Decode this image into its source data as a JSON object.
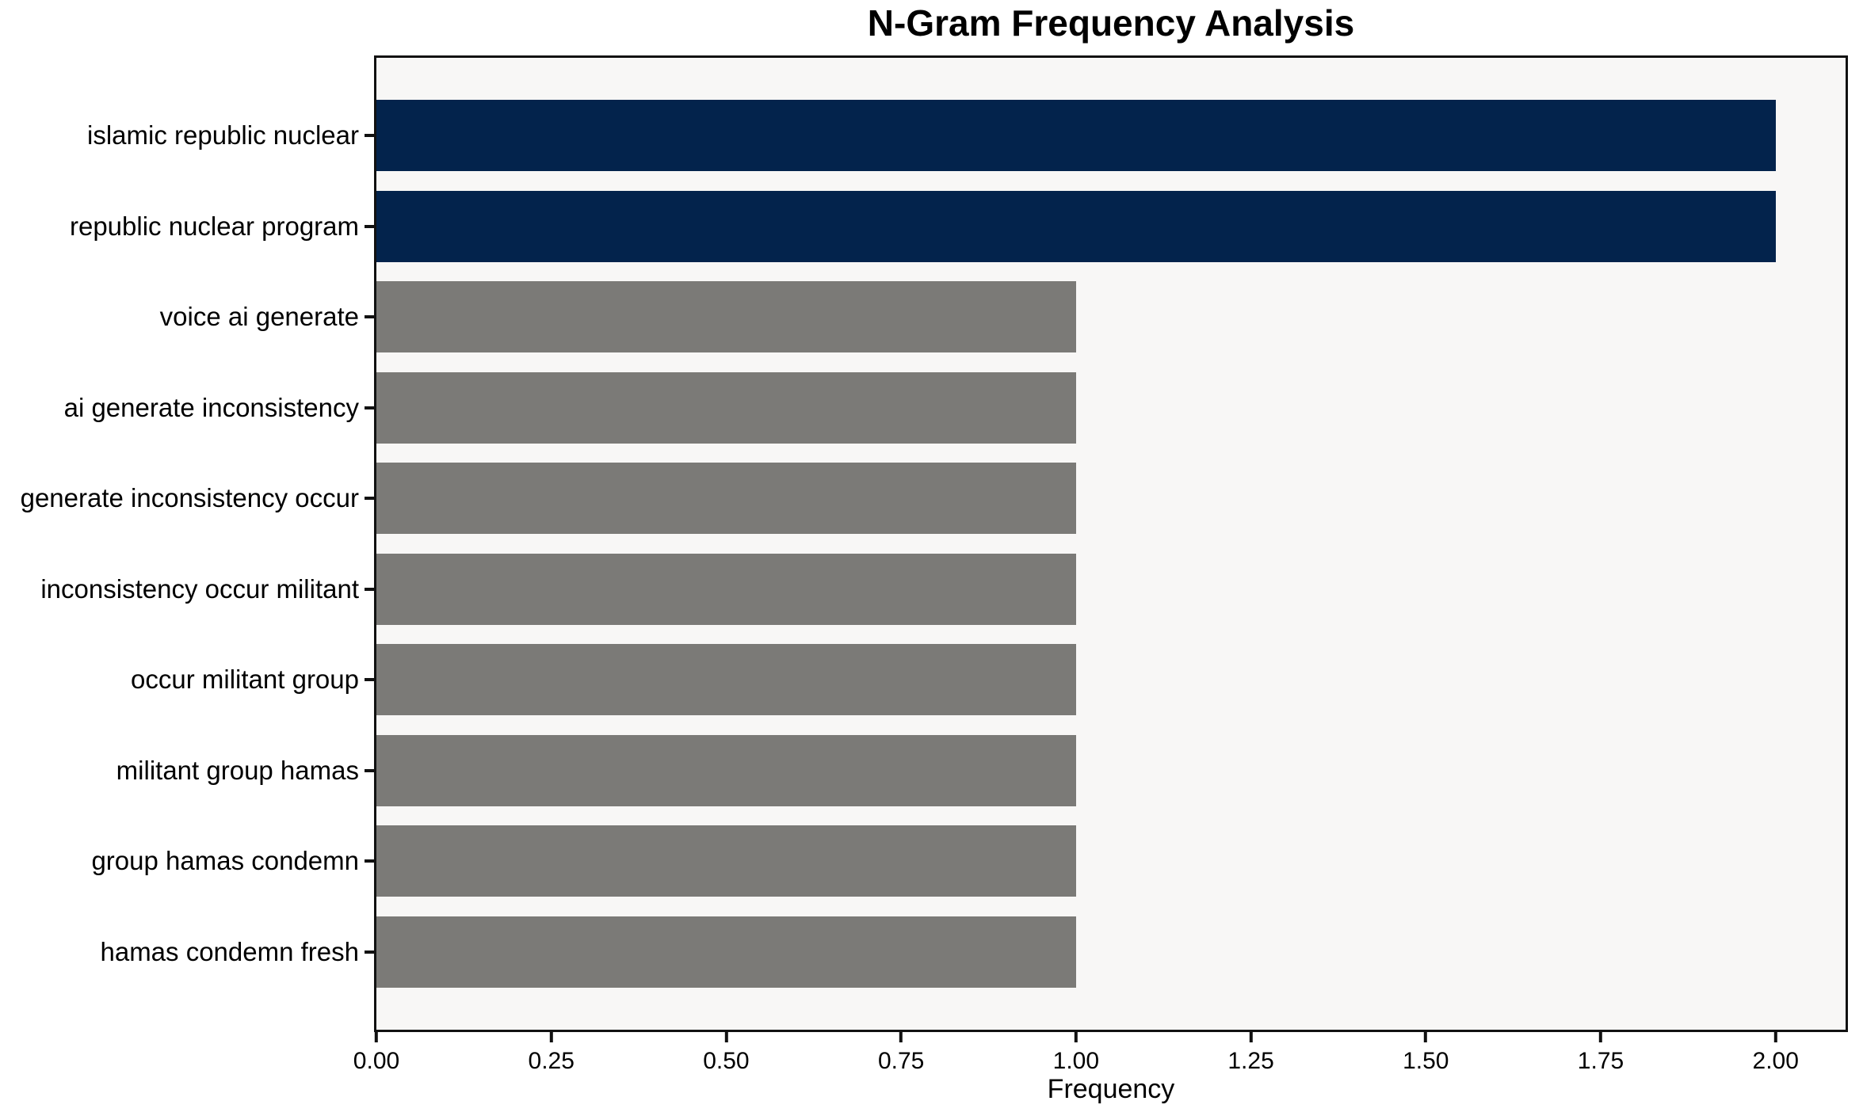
{
  "chart_data": {
    "type": "bar",
    "orientation": "horizontal",
    "title": "N-Gram Frequency Analysis",
    "xlabel": "Frequency",
    "ylabel": "",
    "categories": [
      "islamic republic nuclear",
      "republic nuclear program",
      "voice ai generate",
      "ai generate inconsistency",
      "generate inconsistency occur",
      "inconsistency occur militant",
      "occur militant group",
      "militant group hamas",
      "group hamas condemn",
      "hamas condemn fresh"
    ],
    "values": [
      2,
      2,
      1,
      1,
      1,
      1,
      1,
      1,
      1,
      1
    ],
    "bar_colors": [
      "#03234C",
      "#03234C",
      "#7B7A77",
      "#7B7A77",
      "#7B7A77",
      "#7B7A77",
      "#7B7A77",
      "#7B7A77",
      "#7B7A77",
      "#7B7A77"
    ],
    "xlim": [
      0,
      2.1
    ],
    "x_ticks": [
      {
        "value": 0.0,
        "label": "0.00"
      },
      {
        "value": 0.25,
        "label": "0.25"
      },
      {
        "value": 0.5,
        "label": "0.50"
      },
      {
        "value": 0.75,
        "label": "0.75"
      },
      {
        "value": 1.0,
        "label": "1.00"
      },
      {
        "value": 1.25,
        "label": "1.25"
      },
      {
        "value": 1.5,
        "label": "1.50"
      },
      {
        "value": 1.75,
        "label": "1.75"
      },
      {
        "value": 2.0,
        "label": "2.00"
      }
    ],
    "grid": false,
    "legend": "none",
    "colors": {
      "highlight_bar": "#03234C",
      "default_bar": "#7B7A77",
      "plot_background": "#F8F7F6",
      "figure_background": "#FFFFFF",
      "axis_border": "#111111",
      "text": "#000000"
    }
  }
}
